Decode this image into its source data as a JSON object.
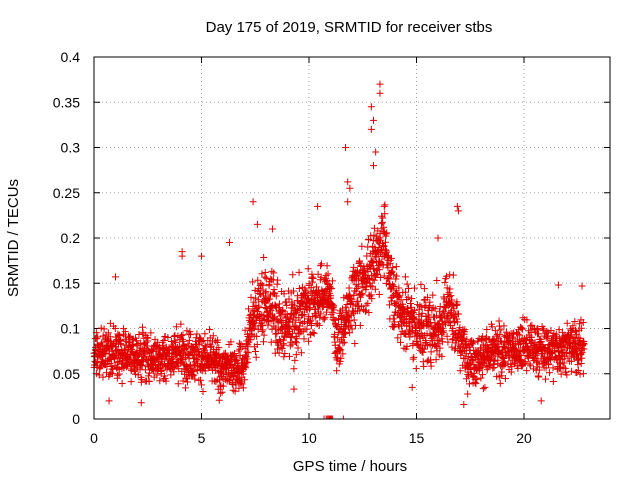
{
  "chart_data": {
    "type": "scatter",
    "title": "Day 175 of 2019, SRMTID for receiver stbs",
    "xlabel": "GPS time / hours",
    "ylabel": "SRMTID / TECUs",
    "xlim": [
      0,
      24
    ],
    "ylim": [
      0,
      0.4
    ],
    "grid": true,
    "legend": "none",
    "xticks": [
      0,
      5,
      10,
      15,
      20
    ],
    "xtick_labels": [
      "0",
      "5",
      "10",
      "15",
      "20"
    ],
    "yticks": [
      0,
      0.05,
      0.1,
      0.15,
      0.2,
      0.25,
      0.3,
      0.35,
      0.4
    ],
    "ytick_labels": [
      "0",
      "0.05",
      "0.1",
      "0.15",
      "0.2",
      "0.25",
      "0.3",
      "0.35",
      "0.4"
    ],
    "marker": "+",
    "color": "#e00000",
    "series": [
      {
        "name": "SRMTID",
        "trend": {
          "x": [
            0,
            1,
            2,
            3,
            4,
            5,
            6,
            7,
            7.3,
            8,
            9,
            10,
            11,
            11.3,
            12,
            13,
            13.4,
            14,
            15,
            16,
            16.5,
            17,
            17.5,
            18,
            19,
            20,
            21,
            22,
            22.8
          ],
          "y": [
            0.07,
            0.075,
            0.07,
            0.068,
            0.072,
            0.07,
            0.055,
            0.06,
            0.11,
            0.13,
            0.1,
            0.13,
            0.14,
            0.08,
            0.13,
            0.17,
            0.2,
            0.13,
            0.1,
            0.1,
            0.13,
            0.09,
            0.065,
            0.07,
            0.075,
            0.08,
            0.075,
            0.08,
            0.08
          ]
        },
        "spread": 0.025,
        "x_range": [
          0,
          22.8
        ],
        "point_count": 2600,
        "notable_points": [
          {
            "x": 13.3,
            "y": 0.37
          },
          {
            "x": 13.3,
            "y": 0.36
          },
          {
            "x": 12.9,
            "y": 0.345
          },
          {
            "x": 13.0,
            "y": 0.33
          },
          {
            "x": 12.9,
            "y": 0.32
          },
          {
            "x": 13.1,
            "y": 0.295
          },
          {
            "x": 11.7,
            "y": 0.3
          },
          {
            "x": 13.0,
            "y": 0.28
          },
          {
            "x": 11.8,
            "y": 0.262
          },
          {
            "x": 11.9,
            "y": 0.255
          },
          {
            "x": 11.8,
            "y": 0.24
          },
          {
            "x": 7.4,
            "y": 0.24
          },
          {
            "x": 16.9,
            "y": 0.235
          },
          {
            "x": 16.95,
            "y": 0.23
          },
          {
            "x": 10.4,
            "y": 0.235
          },
          {
            "x": 13.5,
            "y": 0.235
          },
          {
            "x": 7.6,
            "y": 0.215
          },
          {
            "x": 8.3,
            "y": 0.21
          },
          {
            "x": 16.0,
            "y": 0.2
          },
          {
            "x": 6.3,
            "y": 0.195
          },
          {
            "x": 4.1,
            "y": 0.185
          },
          {
            "x": 4.1,
            "y": 0.18
          },
          {
            "x": 5.0,
            "y": 0.18
          },
          {
            "x": 1.0,
            "y": 0.157
          },
          {
            "x": 22.7,
            "y": 0.147
          },
          {
            "x": 21.6,
            "y": 0.148
          },
          {
            "x": 17.2,
            "y": 0.016
          },
          {
            "x": 20.8,
            "y": 0.02
          },
          {
            "x": 0.7,
            "y": 0.02
          },
          {
            "x": 2.2,
            "y": 0.018
          },
          {
            "x": 9.3,
            "y": 0.033
          },
          {
            "x": 14.8,
            "y": 0.035
          }
        ]
      },
      {
        "name": "near-zero",
        "x": [
          10.7,
          10.8,
          10.85,
          10.9,
          10.95,
          11.0,
          11.05,
          11.1,
          11.6
        ],
        "y": [
          0.0,
          0.0,
          0.0,
          0.0,
          0.0,
          0.0,
          0.0,
          0.0,
          0.0
        ]
      }
    ]
  }
}
